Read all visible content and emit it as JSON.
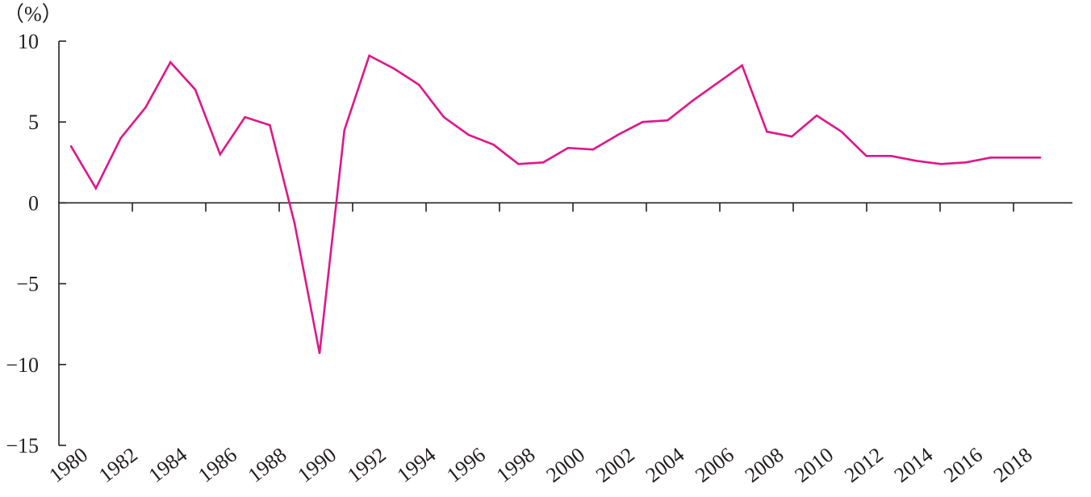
{
  "chart_data": {
    "type": "line",
    "title": "",
    "xlabel": "",
    "ylabel": "（%）",
    "ylim": [
      -15,
      10
    ],
    "xlim": [
      1980,
      2019
    ],
    "y_ticks": [
      10,
      5,
      0,
      -5,
      -10,
      -15
    ],
    "y_tick_labels": [
      "10",
      "5",
      "0",
      "−5",
      "−10",
      "−15"
    ],
    "x_tick_labels": [
      "1980",
      "1982",
      "1984",
      "1986",
      "1988",
      "1990",
      "1992",
      "1994",
      "1996",
      "1998",
      "2000",
      "2002",
      "2004",
      "2006",
      "2008",
      "2010",
      "2012",
      "2014",
      "2016",
      "2018"
    ],
    "grid": false,
    "legend": "none",
    "series": [
      {
        "color": "#e0168a",
        "x": [
          1980,
          1981,
          1982,
          1983,
          1984,
          1985,
          1986,
          1987,
          1988,
          1989,
          1990,
          1991,
          1992,
          1993,
          1994,
          1995,
          1996,
          1997,
          1998,
          1999,
          2000,
          2001,
          2002,
          2003,
          2004,
          2005,
          2006,
          2007,
          2008,
          2009,
          2010,
          2011,
          2012,
          2013,
          2014,
          2015,
          2016,
          2017,
          2018,
          2019
        ],
        "values": [
          3.5,
          0.9,
          4.0,
          5.9,
          8.7,
          7.0,
          3.0,
          5.3,
          4.8,
          -1.3,
          -9.3,
          4.5,
          9.1,
          8.3,
          7.3,
          5.3,
          4.2,
          3.6,
          2.4,
          2.5,
          3.4,
          3.3,
          4.2,
          5.0,
          5.1,
          6.3,
          7.4,
          8.5,
          4.4,
          4.1,
          5.4,
          4.4,
          2.9,
          2.9,
          2.6,
          2.4,
          2.5,
          2.8,
          2.8,
          2.8
        ]
      }
    ]
  }
}
